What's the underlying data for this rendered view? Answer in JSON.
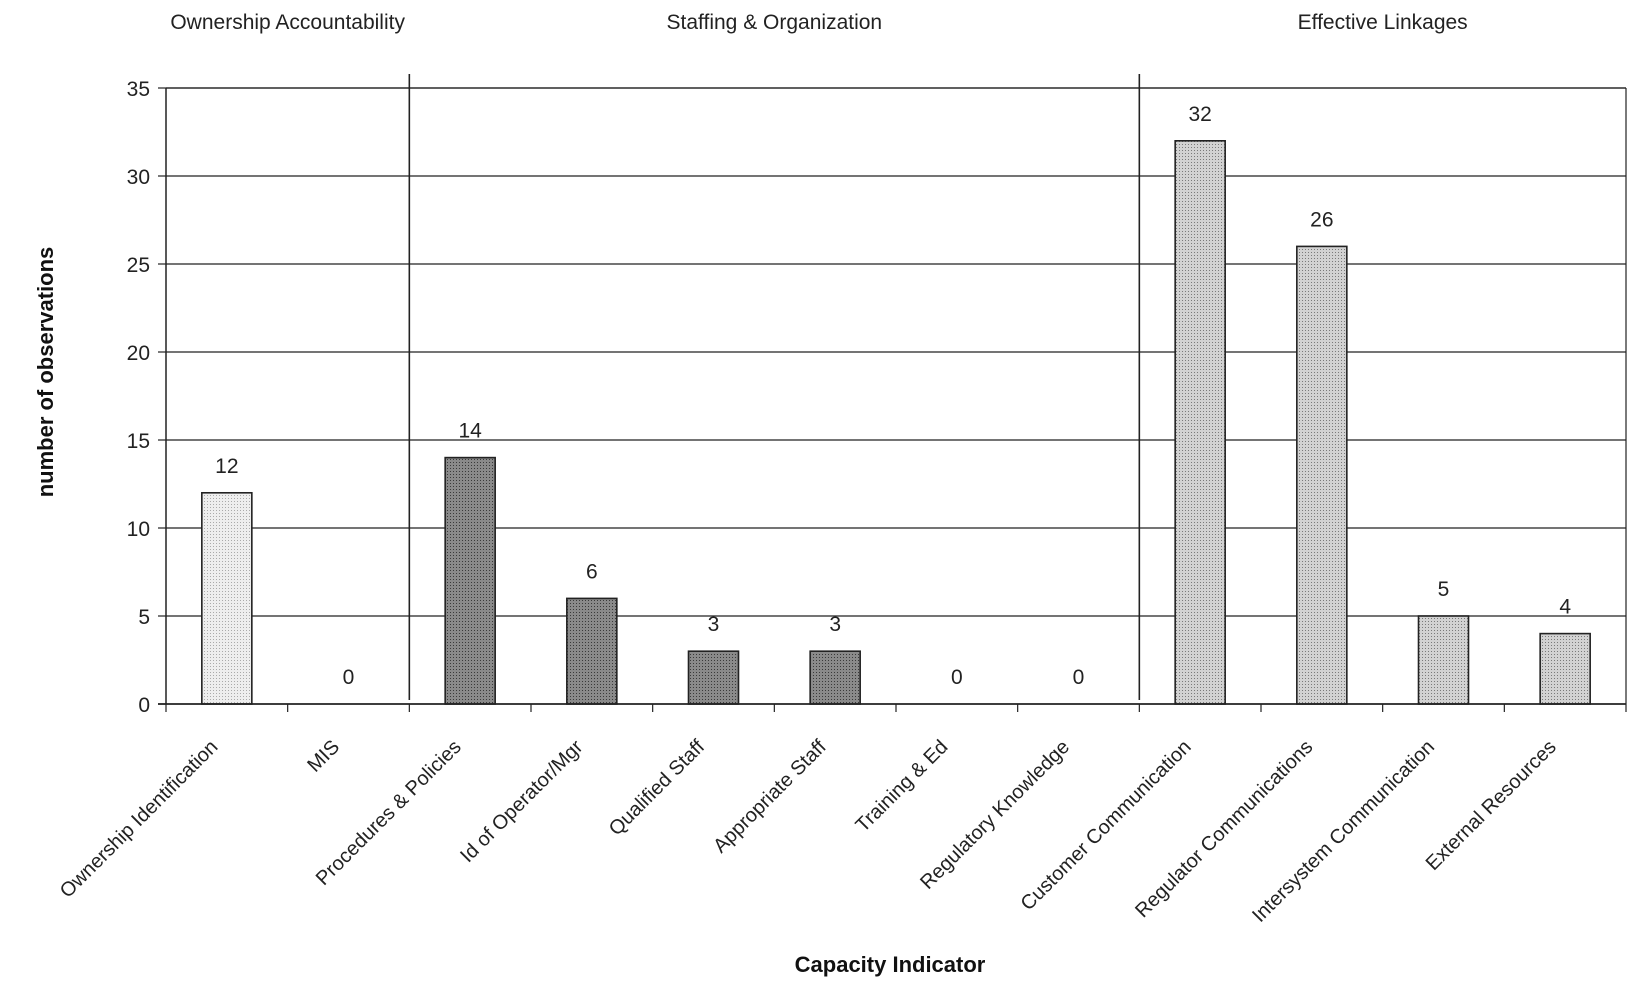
{
  "chart_data": {
    "type": "bar",
    "title": "",
    "xlabel": "Capacity Indicator",
    "ylabel": "number of observations",
    "ylim": [
      0,
      35
    ],
    "yticks": [
      0,
      5,
      10,
      15,
      20,
      25,
      30,
      35
    ],
    "grid": true,
    "categories": [
      "Ownership Identification",
      "MIS",
      "Procedures & Policies",
      "Id of Operator/Mgr",
      "Qualified Staff",
      "Appropriate Staff",
      "Training & Ed",
      "Regulatory Knowledge",
      "Customer Communication",
      "Regulator Communications",
      "Intersystem Communication",
      "External Resources"
    ],
    "values": [
      12,
      0,
      14,
      6,
      3,
      3,
      0,
      0,
      32,
      26,
      5,
      4
    ],
    "groups": [
      {
        "label": "Ownership Accountability",
        "start": 0,
        "end": 1,
        "color": "#e4e4e4"
      },
      {
        "label": "Staffing & Organization",
        "start": 2,
        "end": 7,
        "color": "#7a7a7a"
      },
      {
        "label": "Effective Linkages",
        "start": 8,
        "end": 11,
        "color": "#c2c2c2"
      }
    ]
  }
}
